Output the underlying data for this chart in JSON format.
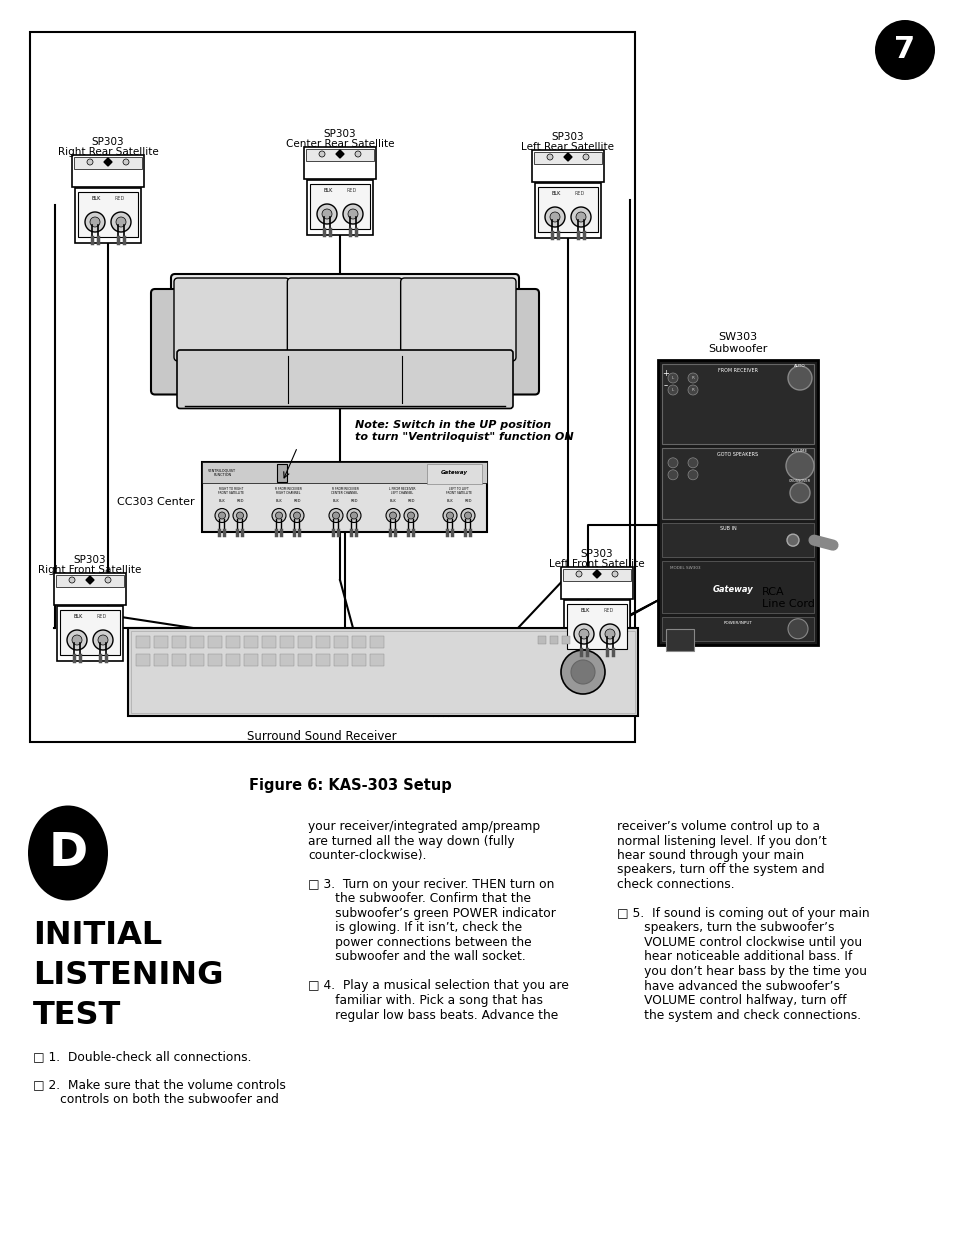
{
  "background_color": "#ffffff",
  "page_width": 9.54,
  "page_height": 12.35,
  "dpi": 100,
  "figure_caption": "Figure 6: KAS-303 Setup",
  "section_letter": "D",
  "section_title_lines": [
    "INITIAL",
    "LISTENING",
    "TEST"
  ],
  "page_number": "7",
  "labels": {
    "sp303_rr": [
      "SP303",
      "Right Rear Satellite"
    ],
    "sp303_cr": [
      "SP303",
      "Center Rear Satellite"
    ],
    "sp303_lr": [
      "SP303",
      "Left Rear Satellite"
    ],
    "sp303_rf": [
      "SP303",
      "Right Front Satellite"
    ],
    "sp303_lf": [
      "SP303",
      "Left Front Satellite"
    ],
    "cc303": "CC303 Center",
    "sw303_1": "SW303",
    "sw303_2": "Subwoofer",
    "surround": "Surround Sound Receiver",
    "rca_1": "RCA",
    "rca_2": "Line Cord",
    "note": "Note: Switch in the UP position\nto turn \"Ventriloquist\" function ON"
  },
  "text_col1_items": [
    "□ 1.  Double-check all connections.",
    "□ 2.  Make sure that the volume controls",
    "       controls on both the subwoofer and"
  ],
  "text_col2_lines": [
    "your receiver/integrated amp/preamp",
    "are turned all the way down (fully",
    "counter-clockwise).",
    "",
    "□ 3.  Turn on your reciver. THEN turn on",
    "       the subwoofer. Confirm that the",
    "       subwoofer’s green POWER indicator",
    "       is glowing. If it isn’t, check the",
    "       power connections between the",
    "       subwoofer and the wall socket.",
    "",
    "□ 4.  Play a musical selection that you are",
    "       familiar with. Pick a song that has",
    "       regular low bass beats. Advance the"
  ],
  "text_col3_lines": [
    "receiver’s volume control up to a",
    "normal listening level. If you don’t",
    "hear sound through your main",
    "speakers, turn off the system and",
    "check connections.",
    "",
    "□ 5.  If sound is coming out of your main",
    "       speakers, turn the subwoofer’s",
    "       VOLUME control clockwise until you",
    "       hear noticeable additional bass. If",
    "       you don’t hear bass by the time you",
    "       have advanced the subwoofer’s",
    "       VOLUME control halfway, turn off",
    "       the system and check connections."
  ]
}
